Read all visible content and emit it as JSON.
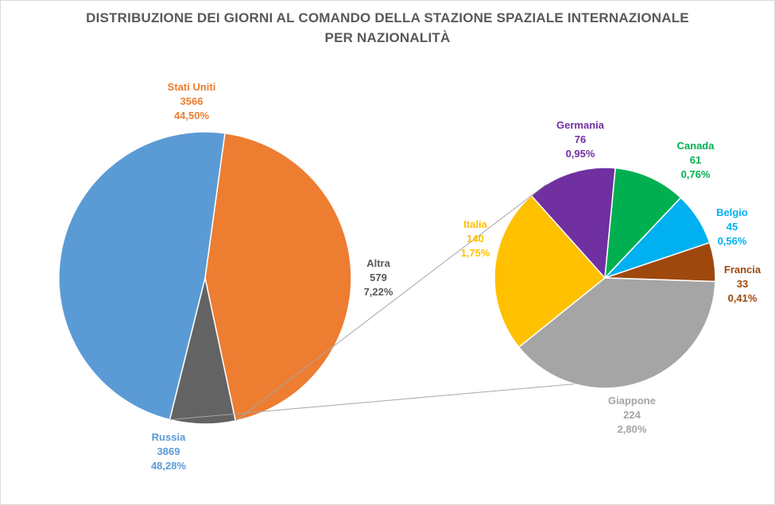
{
  "chart_data": {
    "type": "pie",
    "variant": "pie-of-pie",
    "title_line1": "DISTRIBUZIONE DEI GIORNI AL COMANDO DELLA STAZIONE SPAZIALE INTERNAZIONALE",
    "title_line2": "PER NAZIONALITÀ",
    "primary": {
      "slices": [
        {
          "name": "Stati Uniti",
          "value": 3566,
          "percent": "44,50%",
          "value_label": "3566",
          "color": "#ED7D31"
        },
        {
          "name": "Altra",
          "value": 579,
          "percent": "7,22%",
          "value_label": "579",
          "color": "#636363"
        },
        {
          "name": "Russia",
          "value": 3869,
          "percent": "48,28%",
          "value_label": "3869",
          "color": "#5B9BD5"
        }
      ]
    },
    "secondary": {
      "of": "Altra",
      "slices": [
        {
          "name": "Germania",
          "value": 76,
          "percent": "0,95%",
          "value_label": "76",
          "color": "#7030A0"
        },
        {
          "name": "Canada",
          "value": 61,
          "percent": "0,76%",
          "value_label": "61",
          "color": "#00B050"
        },
        {
          "name": "Belgio",
          "value": 45,
          "percent": "0,56%",
          "value_label": "45",
          "color": "#00B0F0"
        },
        {
          "name": "Francia",
          "value": 33,
          "percent": "0,41%",
          "value_label": "33",
          "color": "#9E480E"
        },
        {
          "name": "Giappone",
          "value": 224,
          "percent": "2,80%",
          "value_label": "224",
          "color": "#A5A5A5"
        },
        {
          "name": "Italia",
          "value": 140,
          "percent": "1,75%",
          "value_label": "140",
          "color": "#FFC000"
        }
      ]
    },
    "legend": "none"
  }
}
